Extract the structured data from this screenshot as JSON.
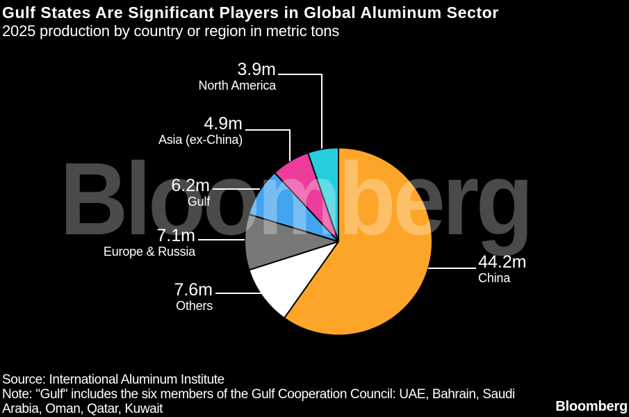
{
  "chart_data": {
    "type": "pie",
    "title": "Gulf States Are Significant Players in Global Aluminum Sector",
    "subtitle": "2025 production by country or region in metric tons",
    "unit": "million metric tons",
    "direction": "clockwise",
    "start_angle_deg": 0,
    "total": 73.9,
    "slices": [
      {
        "label": "China",
        "value": 44.2,
        "display": "44.2m",
        "color": "#FDA529"
      },
      {
        "label": "Others",
        "value": 7.6,
        "display": "7.6m",
        "color": "#FFFFFF"
      },
      {
        "label": "Europe & Russia",
        "value": 7.1,
        "display": "7.1m",
        "color": "#787878"
      },
      {
        "label": "Gulf",
        "value": 6.2,
        "display": "6.2m",
        "color": "#42A4EE"
      },
      {
        "label": "Asia (ex-China)",
        "value": 4.9,
        "display": "4.9m",
        "color": "#EE3C9B"
      },
      {
        "label": "North America",
        "value": 3.9,
        "display": "3.9m",
        "color": "#26CFDE"
      }
    ]
  },
  "watermark": "Bloomberg",
  "footer": {
    "source": "Source: International Aluminum Institute",
    "note": "Note: \"Gulf\" includes the six members of the Gulf Cooperation Council: UAE, Bahrain, Saudi\nArabia, Oman, Qatar, Kuwait",
    "logo": "Bloomberg"
  },
  "colors": {
    "background": "#000000",
    "text": "#FFFFFF",
    "slice_border": "#000000",
    "callout_line": "#FFFFFF"
  }
}
